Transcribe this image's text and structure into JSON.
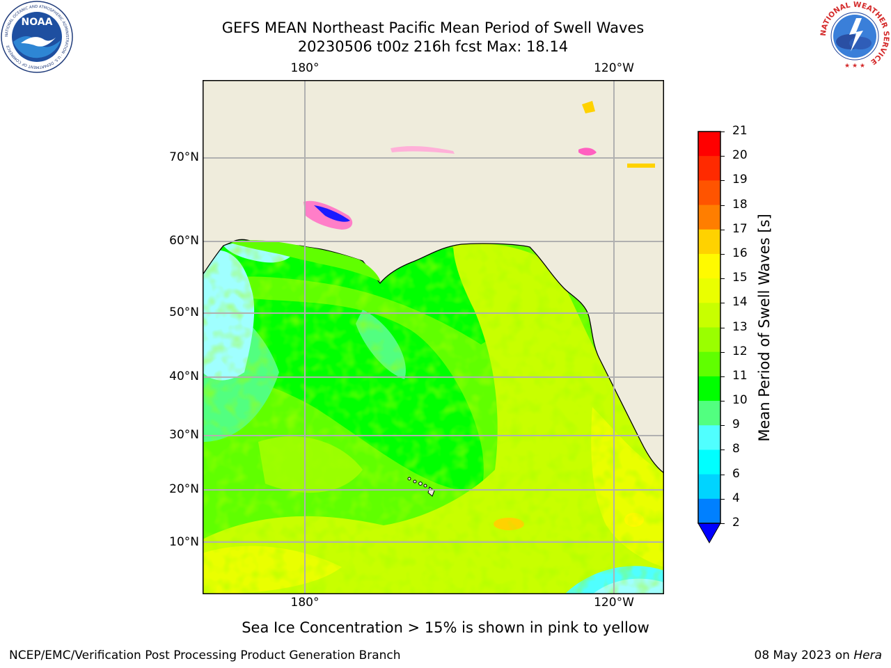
{
  "title": {
    "line1": "GEFS MEAN Northeast Pacific Mean Period of Swell Waves",
    "line2": "20230506 t00z 216h fcst   Max: 18.14"
  },
  "map": {
    "lon_labels_top": [
      "180°",
      "120°W"
    ],
    "lon_labels_bottom": [
      "180°",
      "120°W"
    ],
    "lat_labels": [
      "70°N",
      "60°N",
      "50°N",
      "40°N",
      "30°N",
      "20°N",
      "10°N"
    ],
    "colors": {
      "land": "#efecdc",
      "coast": "#000000",
      "grid": "#b0b0b0"
    }
  },
  "colorbar": {
    "label": "Mean Period of Swell Waves [s]",
    "ticks": [
      "21",
      "20",
      "19",
      "18",
      "17",
      "16",
      "15",
      "14",
      "13",
      "12",
      "11",
      "10",
      "9",
      "8",
      "6",
      "4",
      "2"
    ],
    "colors": [
      "#ff0000",
      "#ff2a00",
      "#ff5400",
      "#ff7e00",
      "#ffa800",
      "#ffd200",
      "#fffa00",
      "#eaff00",
      "#c8ff00",
      "#9aff00",
      "#60ff00",
      "#00ff00",
      "#52ff80",
      "#a0ffff",
      "#50ffff",
      "#00ffff",
      "#00d4ff",
      "#0080ff",
      "#0000ff"
    ]
  },
  "sea_ice_note": "Sea Ice Concentration > 15% is shown in pink to yellow",
  "footer": {
    "left": "NCEP/EMC/Verification Post Processing Product Generation Branch",
    "date": "08 May 2023 on ",
    "host": "Hera"
  },
  "logos": {
    "noaa_text": "NOAA",
    "noaa_ring": "NATIONAL OCEANIC AND ATMOSPHERIC ADMINISTRATION · U.S. DEPARTMENT OF COMMERCE",
    "nws_ring": "NATIONAL WEATHER SERVICE"
  }
}
